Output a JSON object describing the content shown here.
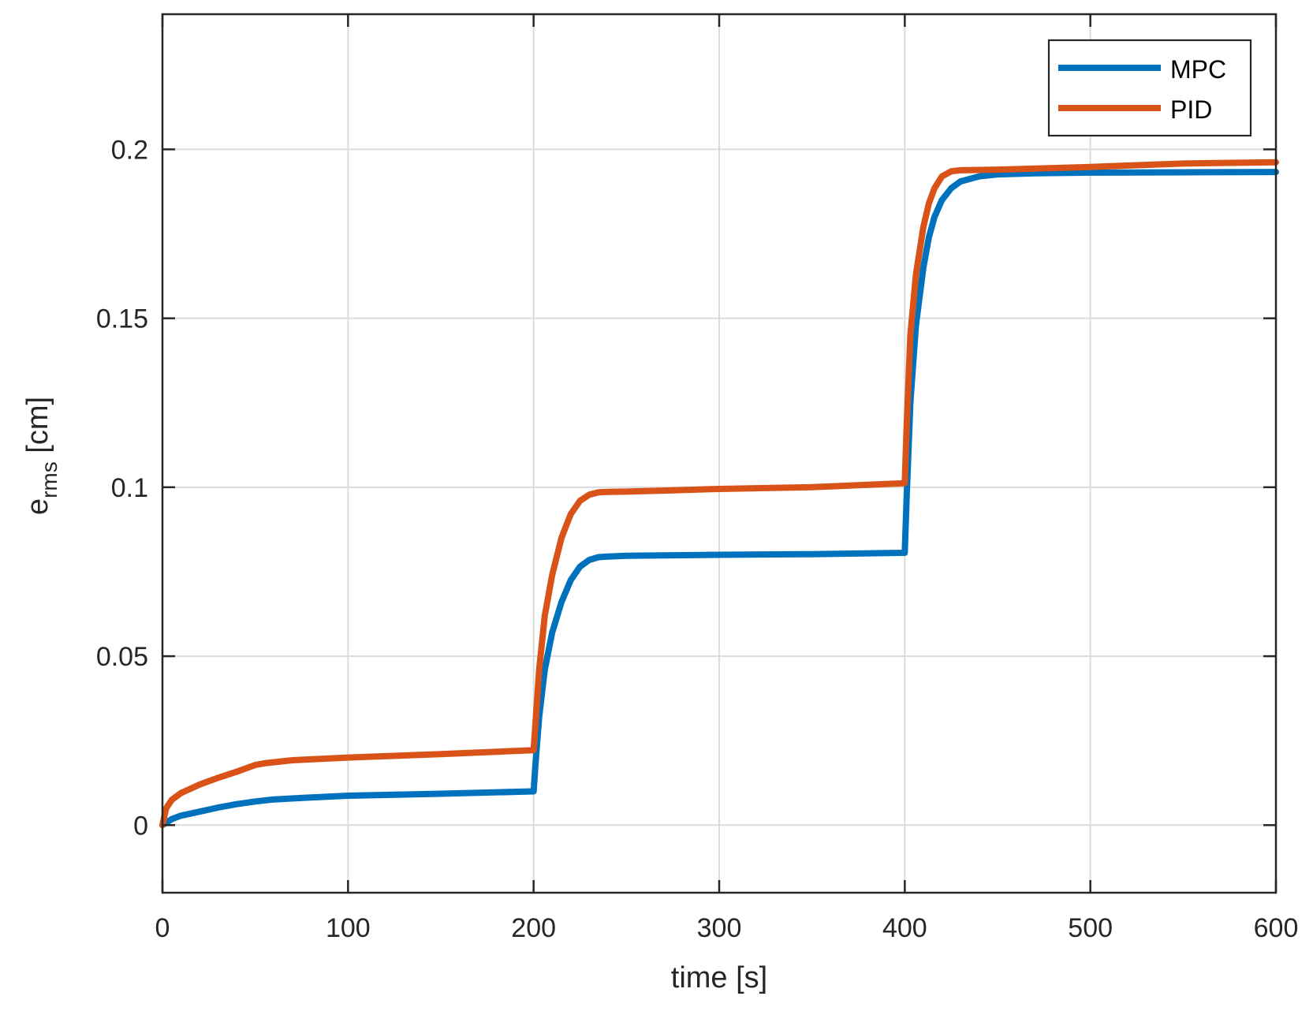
{
  "chart_data": {
    "type": "line",
    "xlabel": "time [s]",
    "ylabel": {
      "main": "e",
      "sub": "rms",
      "unit": " [cm]"
    },
    "xlim": [
      0,
      600
    ],
    "ylim": [
      -0.02,
      0.24
    ],
    "xticks": [
      0,
      100,
      200,
      300,
      400,
      500,
      600
    ],
    "xtick_labels": [
      "0",
      "100",
      "200",
      "300",
      "400",
      "500",
      "600"
    ],
    "yticks": [
      0,
      0.05,
      0.1,
      0.15,
      0.2
    ],
    "ytick_labels": [
      "0",
      "0.05",
      "0.1",
      "0.15",
      "0.2"
    ],
    "grid": true,
    "legend_position": "top-right",
    "series": [
      {
        "name": "MPC",
        "color": "#0072BD",
        "x": [
          0,
          5,
          10,
          20,
          30,
          40,
          50,
          60,
          80,
          100,
          150,
          200,
          201,
          203,
          206,
          210,
          215,
          220,
          225,
          230,
          235,
          240,
          250,
          300,
          350,
          400,
          401,
          403,
          406,
          410,
          413,
          416,
          420,
          425,
          430,
          440,
          450,
          470,
          500,
          550,
          600
        ],
        "y": [
          0,
          0.0018,
          0.0028,
          0.004,
          0.0052,
          0.0062,
          0.007,
          0.0076,
          0.0082,
          0.0087,
          0.0093,
          0.01,
          0.018,
          0.032,
          0.046,
          0.057,
          0.066,
          0.0725,
          0.0765,
          0.0785,
          0.0793,
          0.0795,
          0.0797,
          0.08,
          0.0802,
          0.0806,
          0.097,
          0.125,
          0.148,
          0.165,
          0.174,
          0.18,
          0.185,
          0.1885,
          0.1905,
          0.192,
          0.1926,
          0.1929,
          0.1931,
          0.1932,
          0.1933
        ]
      },
      {
        "name": "PID",
        "color": "#D95319",
        "x": [
          0,
          2,
          5,
          10,
          20,
          30,
          40,
          50,
          55,
          70,
          100,
          150,
          200,
          201,
          203,
          206,
          210,
          215,
          220,
          225,
          230,
          235,
          240,
          250,
          270,
          300,
          350,
          400,
          401,
          403,
          406,
          410,
          413,
          416,
          420,
          425,
          430,
          450,
          500,
          550,
          600
        ],
        "y": [
          0,
          0.005,
          0.0075,
          0.0095,
          0.012,
          0.014,
          0.0158,
          0.0178,
          0.0183,
          0.0192,
          0.02,
          0.021,
          0.0222,
          0.03,
          0.046,
          0.062,
          0.074,
          0.085,
          0.092,
          0.096,
          0.0978,
          0.0985,
          0.0986,
          0.0987,
          0.099,
          0.0995,
          0.1,
          0.1012,
          0.118,
          0.145,
          0.163,
          0.177,
          0.184,
          0.1885,
          0.192,
          0.1935,
          0.1938,
          0.194,
          0.1948,
          0.1958,
          0.1962
        ]
      }
    ]
  }
}
